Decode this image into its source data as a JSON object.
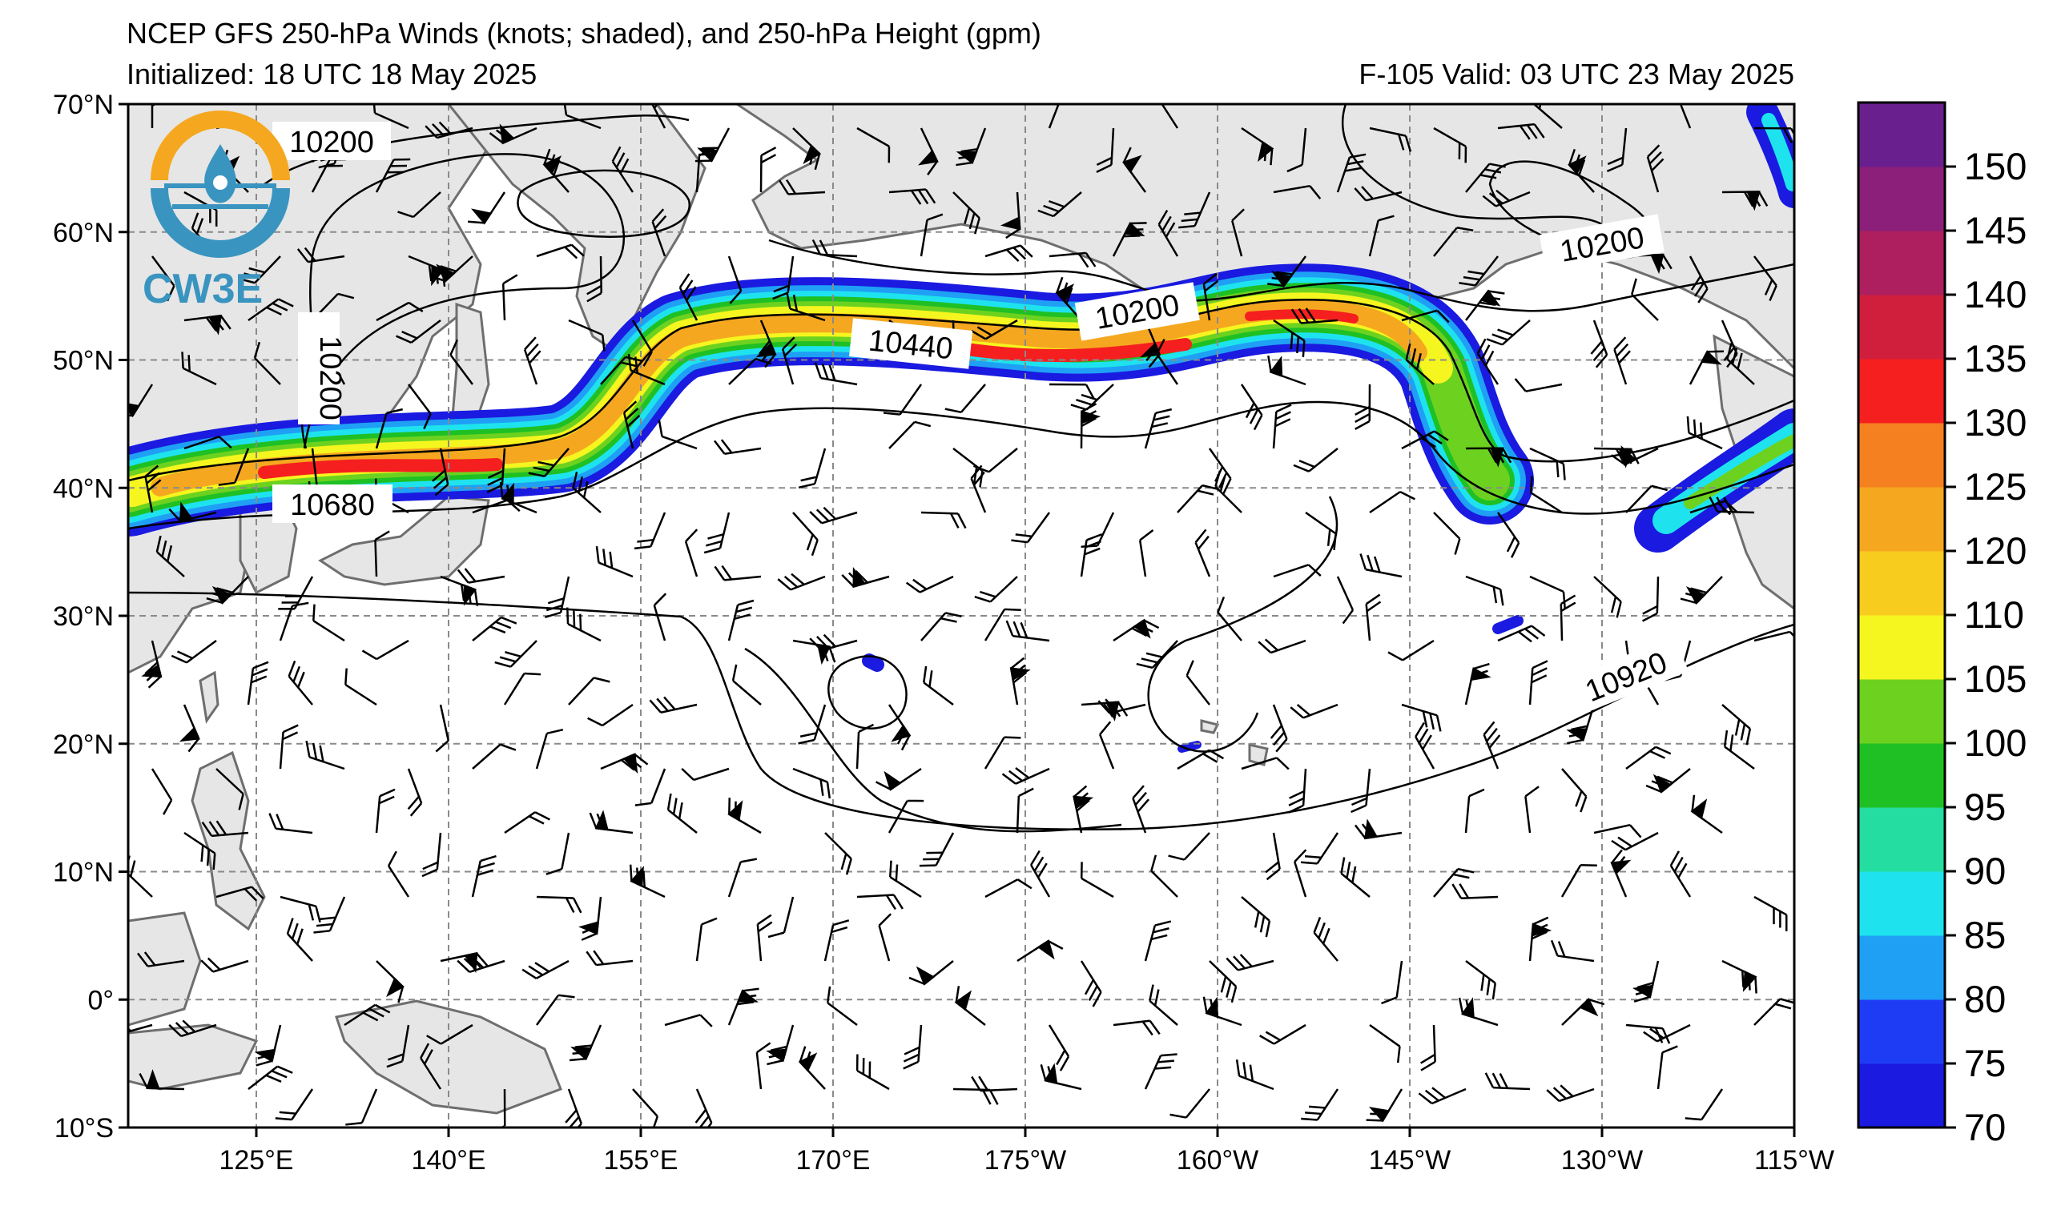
{
  "title": {
    "line1": "NCEP GFS 250-hPa Winds (knots; shaded), and 250-hPa Height (gpm)",
    "initialized": "Initialized: 18 UTC 18 May 2025",
    "valid": "F-105  Valid: 03 UTC 23 May 2025"
  },
  "logo": {
    "text": "CW3E"
  },
  "axes": {
    "lat_labels": [
      "70°N",
      "60°N",
      "50°N",
      "40°N",
      "30°N",
      "20°N",
      "10°N",
      "0°",
      "10°S"
    ],
    "lon_labels": [
      "125°E",
      "140°E",
      "155°E",
      "170°E",
      "175°W",
      "160°W",
      "145°W",
      "130°W",
      "115°W"
    ]
  },
  "colorbar": {
    "labels": [
      "70",
      "75",
      "80",
      "85",
      "90",
      "95",
      "100",
      "105",
      "110",
      "120",
      "125",
      "130",
      "135",
      "140",
      "145",
      "150"
    ],
    "colors": [
      "#1a1ae0",
      "#1f3cf5",
      "#1fa0f5",
      "#1ee3ee",
      "#24dda0",
      "#1fc024",
      "#6dd21f",
      "#f5f51f",
      "#f7cc1f",
      "#f5a81f",
      "#f5801f",
      "#f51f1f",
      "#cf1f3c",
      "#ad1f5f",
      "#8c1f7a",
      "#6a1f8f"
    ]
  },
  "contours": {
    "labels": [
      "10200",
      "10200",
      "10200",
      "10200",
      "10440",
      "10680",
      "10920"
    ]
  },
  "colors": {
    "land": "#e6e6e6",
    "coast": "#6e6e6e",
    "grid": "#8a8a8a",
    "logo_orange": "#f5a81f",
    "logo_blue": "#3a94c0"
  }
}
